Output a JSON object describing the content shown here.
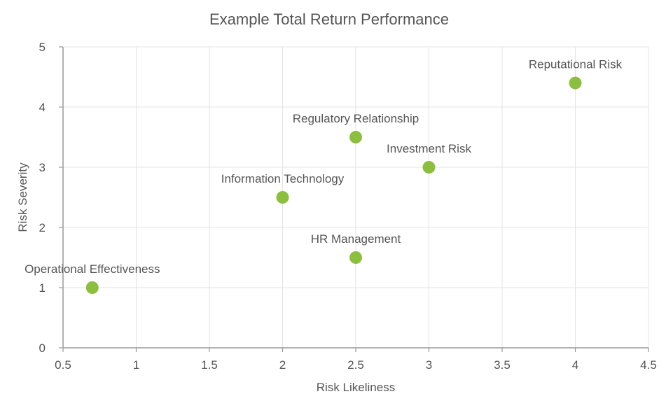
{
  "chart_data": {
    "type": "scatter",
    "title": "Example Total Return Performance",
    "xlabel": "Risk Likeliness",
    "ylabel": "Risk Severity",
    "xlim": [
      0.5,
      4.5
    ],
    "ylim": [
      0,
      5
    ],
    "x_ticks": [
      "0.5",
      "1",
      "1.5",
      "2",
      "2.5",
      "3",
      "3.5",
      "4",
      "4.5"
    ],
    "y_ticks": [
      "0",
      "1",
      "2",
      "3",
      "4",
      "5"
    ],
    "grid": true,
    "point_color": "#8dbf3f",
    "points": [
      {
        "label": "Operational Effectiveness",
        "x": 0.7,
        "y": 1.0
      },
      {
        "label": "Information Technology",
        "x": 2.0,
        "y": 2.5
      },
      {
        "label": "HR Management",
        "x": 2.5,
        "y": 1.5
      },
      {
        "label": "Regulatory Relationship",
        "x": 2.5,
        "y": 3.5
      },
      {
        "label": "Investment Risk",
        "x": 3.0,
        "y": 3.0
      },
      {
        "label": "Reputational Risk",
        "x": 4.0,
        "y": 4.4
      }
    ]
  }
}
